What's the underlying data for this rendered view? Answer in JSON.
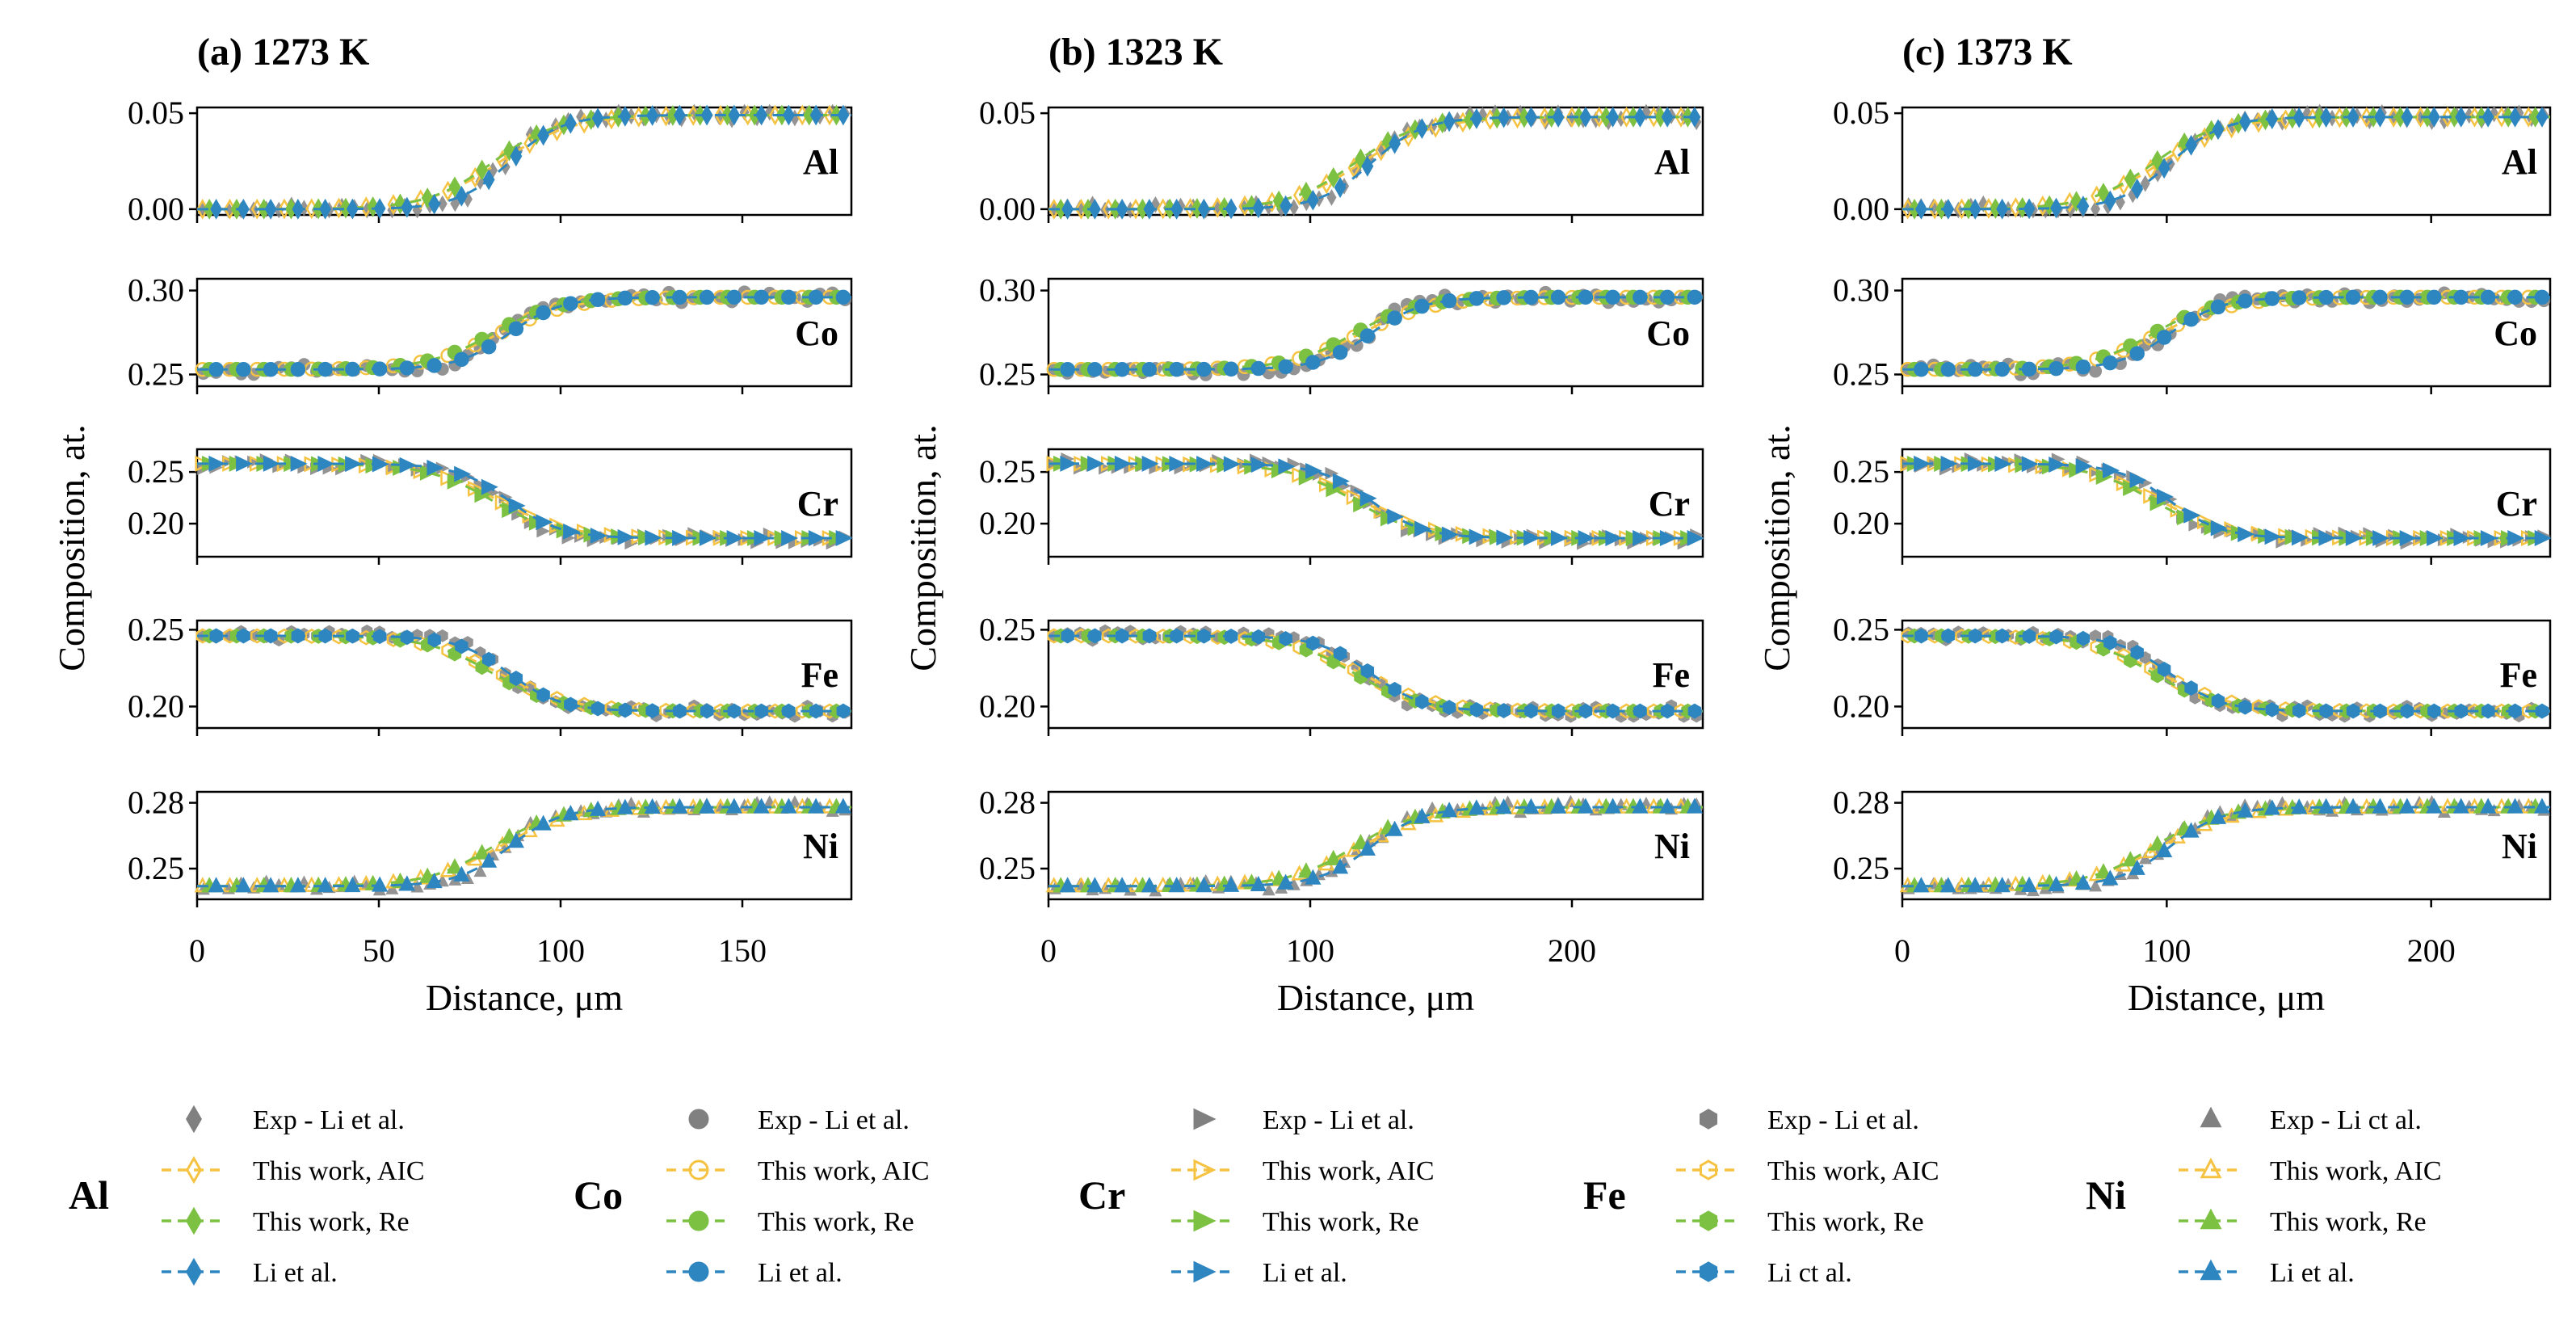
{
  "figure": {
    "ylabel": "Composition, at.",
    "xlabel": "Distance, μm"
  },
  "chart_data": [
    {
      "type": "line",
      "title": "(a) 1273 K",
      "xlabel": "Distance, μm",
      "ylabel": "Composition, at.",
      "xlim": [
        0,
        180
      ],
      "xticks": [
        "0",
        "50",
        "100",
        "150"
      ],
      "x0": 85,
      "rows": [
        {
          "element": "Al",
          "ylim": [
            -0.003,
            0.053
          ],
          "yticks": [
            "0.00",
            "0.05"
          ],
          "start": 0.0,
          "end": 0.049
        },
        {
          "element": "Co",
          "ylim": [
            0.243,
            0.307
          ],
          "yticks": [
            "0.25",
            "0.30"
          ],
          "start": 0.253,
          "end": 0.296
        },
        {
          "element": "Cr",
          "ylim": [
            0.168,
            0.272
          ],
          "yticks": [
            "0.20",
            "0.25"
          ],
          "start": 0.258,
          "end": 0.186
        },
        {
          "element": "Fe",
          "ylim": [
            0.186,
            0.256
          ],
          "yticks": [
            "0.20",
            "0.25"
          ],
          "start": 0.246,
          "end": 0.197
        },
        {
          "element": "Ni",
          "ylim": [
            0.236,
            0.285
          ],
          "yticks": [
            "0.25",
            "0.28"
          ],
          "start": 0.242,
          "end": 0.278
        }
      ]
    },
    {
      "type": "line",
      "title": "(b) 1323 K",
      "xlabel": "Distance, μm",
      "ylabel": "Composition, at.",
      "xlim": [
        0,
        250
      ],
      "xticks": [
        "0",
        "100",
        "200"
      ],
      "x0": 122,
      "rows": [
        {
          "element": "Al",
          "ylim": [
            -0.003,
            0.053
          ],
          "yticks": [
            "0.00",
            "0.05"
          ],
          "start": 0.0,
          "end": 0.048
        },
        {
          "element": "Co",
          "ylim": [
            0.243,
            0.307
          ],
          "yticks": [
            "0.25",
            "0.30"
          ],
          "start": 0.253,
          "end": 0.296
        },
        {
          "element": "Cr",
          "ylim": [
            0.168,
            0.272
          ],
          "yticks": [
            "0.20",
            "0.25"
          ],
          "start": 0.258,
          "end": 0.186
        },
        {
          "element": "Fe",
          "ylim": [
            0.186,
            0.256
          ],
          "yticks": [
            "0.20",
            "0.25"
          ],
          "start": 0.246,
          "end": 0.197
        },
        {
          "element": "Ni",
          "ylim": [
            0.236,
            0.285
          ],
          "yticks": [
            "0.25",
            "0.28"
          ],
          "start": 0.242,
          "end": 0.278
        }
      ]
    },
    {
      "type": "line",
      "title": "(c) 1373 K",
      "xlabel": "Distance, μm",
      "ylabel": "Composition, at.",
      "xlim": [
        0,
        245
      ],
      "xticks": [
        "0",
        "100",
        "200"
      ],
      "x0": 100,
      "rows": [
        {
          "element": "Al",
          "ylim": [
            -0.003,
            0.053
          ],
          "yticks": [
            "0.00",
            "0.05"
          ],
          "start": 0.0,
          "end": 0.048
        },
        {
          "element": "Co",
          "ylim": [
            0.243,
            0.307
          ],
          "yticks": [
            "0.25",
            "0.30"
          ],
          "start": 0.253,
          "end": 0.296
        },
        {
          "element": "Cr",
          "ylim": [
            0.168,
            0.272
          ],
          "yticks": [
            "0.20",
            "0.25"
          ],
          "start": 0.258,
          "end": 0.186
        },
        {
          "element": "Fe",
          "ylim": [
            0.186,
            0.256
          ],
          "yticks": [
            "0.20",
            "0.25"
          ],
          "start": 0.246,
          "end": 0.197
        },
        {
          "element": "Ni",
          "ylim": [
            0.236,
            0.285
          ],
          "yticks": [
            "0.25",
            "0.28"
          ],
          "start": 0.242,
          "end": 0.278
        }
      ]
    }
  ],
  "series_styles": [
    {
      "key": "exp",
      "label": "Exp - Li et al.",
      "color": "#808080",
      "dash": ""
    },
    {
      "key": "aic",
      "label": "This work, AIC",
      "color": "#F5C242",
      "dash": "14,10"
    },
    {
      "key": "re",
      "label": "This work, Re",
      "color": "#7CC142",
      "dash": "14,10"
    },
    {
      "key": "li",
      "label": "Li et al.",
      "color": "#2E86C1",
      "dash": "14,10"
    }
  ],
  "legend": [
    {
      "element": "Al",
      "marker": "diamond",
      "entries": [
        "Exp - Li et al.",
        "This work, AIC",
        "This work, Re",
        "Li et al."
      ]
    },
    {
      "element": "Co",
      "marker": "circle",
      "entries": [
        "Exp - Li et al.",
        "This work, AIC",
        "This work, Re",
        "Li et al."
      ]
    },
    {
      "element": "Cr",
      "marker": "triangle-right",
      "entries": [
        "Exp - Li et al.",
        "This work, AIC",
        "This work, Re",
        "Li et al."
      ]
    },
    {
      "element": "Fe",
      "marker": "hexagon",
      "entries": [
        "Exp - Li et al.",
        "This work, AIC",
        "This work, Re",
        "Li ct al."
      ]
    },
    {
      "element": "Ni",
      "marker": "triangle-up",
      "entries": [
        "Exp - Li ct al.",
        "This work, AIC",
        "This work, Re",
        "Li et al."
      ]
    }
  ]
}
